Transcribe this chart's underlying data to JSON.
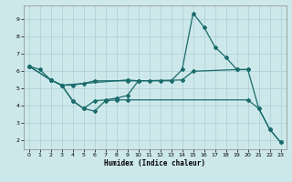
{
  "bg_color": "#cde8eb",
  "grid_color": "#aacfd4",
  "line_color": "#1a6b6b",
  "xlabel": "Humidex (Indice chaleur)",
  "xlim": [
    -0.5,
    23.5
  ],
  "ylim": [
    1.5,
    9.8
  ],
  "xticks": [
    0,
    1,
    2,
    3,
    4,
    5,
    6,
    7,
    8,
    9,
    10,
    11,
    12,
    13,
    14,
    15,
    16,
    17,
    18,
    19,
    20,
    21,
    22,
    23
  ],
  "yticks": [
    2,
    3,
    4,
    5,
    6,
    7,
    8,
    9
  ],
  "series1_x": [
    0,
    1,
    2,
    3,
    4,
    5,
    6,
    7,
    8,
    9,
    10,
    11,
    12,
    13,
    14,
    15,
    16,
    17,
    18,
    19,
    20,
    21,
    22,
    23
  ],
  "series1_y": [
    6.3,
    6.1,
    5.5,
    5.2,
    4.3,
    3.85,
    4.3,
    4.35,
    4.45,
    4.6,
    5.45,
    5.45,
    5.45,
    5.45,
    6.1,
    9.35,
    8.55,
    7.4,
    6.8,
    6.1,
    6.1,
    3.85,
    2.65,
    1.9
  ],
  "series2_x": [
    0,
    2,
    3,
    9,
    10,
    14,
    15,
    19,
    20
  ],
  "series2_y": [
    6.3,
    5.5,
    5.2,
    5.5,
    5.45,
    5.5,
    6.0,
    6.1,
    6.1
  ],
  "series3_x": [
    2,
    3,
    4,
    5,
    6,
    9,
    10
  ],
  "series3_y": [
    5.5,
    5.2,
    5.2,
    5.3,
    5.45,
    5.45,
    5.45
  ],
  "series4_x": [
    0,
    2,
    3,
    4,
    5,
    6,
    7,
    8,
    9,
    20,
    21,
    22,
    23
  ],
  "series4_y": [
    6.3,
    5.5,
    5.2,
    4.3,
    3.85,
    3.7,
    4.3,
    4.35,
    4.35,
    4.35,
    3.85,
    2.65,
    1.9
  ]
}
